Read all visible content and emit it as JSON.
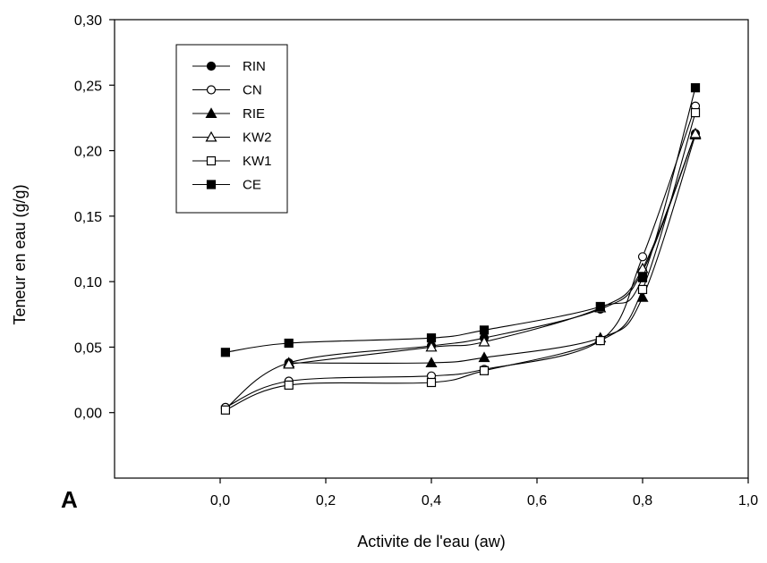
{
  "panel_label": "A",
  "chart_data": {
    "type": "line",
    "xlabel": "Activite de l'eau (aw)",
    "ylabel": "Teneur en eau (g/g)",
    "xlim": [
      -0.2,
      1.0
    ],
    "ylim": [
      -0.05,
      0.3
    ],
    "xticks": [
      0.0,
      0.2,
      0.4,
      0.6,
      0.8,
      1.0
    ],
    "xtick_labels": [
      "0,0",
      "0,2",
      "0,4",
      "0,6",
      "0,8",
      "1,0"
    ],
    "yticks": [
      0.0,
      0.05,
      0.1,
      0.15,
      0.2,
      0.25,
      0.3
    ],
    "ytick_labels": [
      "0,00",
      "0,05",
      "0,10",
      "0,15",
      "0,20",
      "0,25",
      "0,30"
    ],
    "grid": false,
    "legend_position": "top-left",
    "series": [
      {
        "name": "RIN",
        "marker": "circle-filled",
        "x": [
          0.01,
          0.13,
          0.4,
          0.5,
          0.72,
          0.8,
          0.9
        ],
        "y": [
          0.003,
          0.038,
          0.051,
          0.057,
          0.079,
          0.108,
          0.213
        ]
      },
      {
        "name": "CN",
        "marker": "circle-open",
        "x": [
          0.01,
          0.13,
          0.4,
          0.5,
          0.72,
          0.8,
          0.9
        ],
        "y": [
          0.004,
          0.024,
          0.028,
          0.033,
          0.055,
          0.119,
          0.234
        ]
      },
      {
        "name": "RIE",
        "marker": "triangle-filled",
        "x": [
          0.13,
          0.4,
          0.5,
          0.72,
          0.8,
          0.9
        ],
        "y": [
          0.038,
          0.038,
          0.042,
          0.057,
          0.088,
          0.212
        ]
      },
      {
        "name": "KW2",
        "marker": "triangle-open",
        "x": [
          0.13,
          0.4,
          0.5,
          0.72,
          0.8,
          0.9
        ],
        "y": [
          0.037,
          0.05,
          0.054,
          0.08,
          0.11,
          0.213
        ]
      },
      {
        "name": "KW1",
        "marker": "square-open",
        "x": [
          0.01,
          0.13,
          0.4,
          0.5,
          0.72,
          0.8,
          0.9
        ],
        "y": [
          0.002,
          0.021,
          0.023,
          0.032,
          0.055,
          0.094,
          0.229
        ]
      },
      {
        "name": "CE",
        "marker": "square-filled",
        "x": [
          0.01,
          0.13,
          0.4,
          0.5,
          0.72,
          0.8,
          0.9
        ],
        "y": [
          0.046,
          0.053,
          0.057,
          0.063,
          0.081,
          0.103,
          0.248
        ]
      }
    ]
  }
}
